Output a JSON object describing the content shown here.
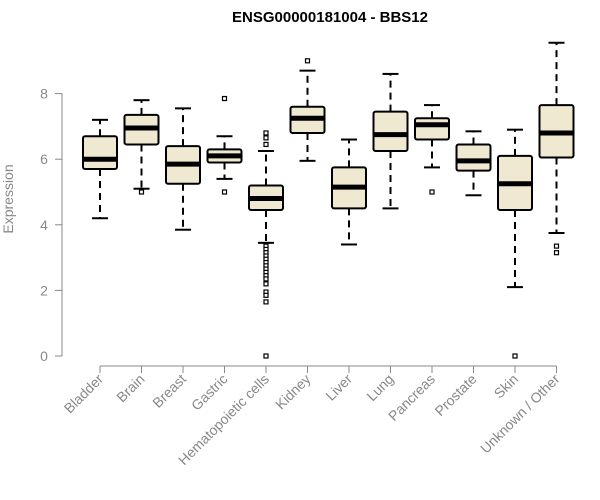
{
  "chart_data": {
    "type": "box",
    "title": "ENSG00000181004 - BBS12",
    "xlabel": "",
    "ylabel": "Expression",
    "ylim": [
      0,
      9.6
    ],
    "yticks": [
      0,
      2,
      4,
      6,
      8
    ],
    "grid": false,
    "box_fill": "#efe9d2",
    "categories": [
      "Bladder",
      "Brain",
      "Breast",
      "Gastric",
      "Hematopoietic cells",
      "Kidney",
      "Liver",
      "Lung",
      "Pancreas",
      "Prostate",
      "Skin",
      "Unknown / Other"
    ],
    "boxes": [
      {
        "whisker_low": 4.2,
        "q1": 5.7,
        "median": 6.0,
        "q3": 6.7,
        "whisker_high": 7.2,
        "outliers": []
      },
      {
        "whisker_low": 5.1,
        "q1": 6.45,
        "median": 6.95,
        "q3": 7.35,
        "whisker_high": 7.8,
        "outliers": [
          5.0
        ]
      },
      {
        "whisker_low": 3.85,
        "q1": 5.25,
        "median": 5.85,
        "q3": 6.4,
        "whisker_high": 7.55,
        "outliers": []
      },
      {
        "whisker_low": 5.4,
        "q1": 5.9,
        "median": 6.1,
        "q3": 6.3,
        "whisker_high": 6.7,
        "outliers": [
          7.85,
          5.0
        ]
      },
      {
        "whisker_low": 3.45,
        "q1": 4.45,
        "median": 4.8,
        "q3": 5.2,
        "whisker_high": 6.25,
        "outliers": [
          6.8,
          6.65,
          6.45,
          3.35,
          3.25,
          3.15,
          3.05,
          2.95,
          2.85,
          2.75,
          2.65,
          2.55,
          2.45,
          2.35,
          2.2,
          1.95,
          1.85,
          1.65,
          0.0
        ]
      },
      {
        "whisker_low": 5.95,
        "q1": 6.8,
        "median": 7.25,
        "q3": 7.6,
        "whisker_high": 8.7,
        "outliers": [
          9.0
        ]
      },
      {
        "whisker_low": 3.4,
        "q1": 4.5,
        "median": 5.15,
        "q3": 5.75,
        "whisker_high": 6.6,
        "outliers": []
      },
      {
        "whisker_low": 4.5,
        "q1": 6.25,
        "median": 6.75,
        "q3": 7.45,
        "whisker_high": 8.6,
        "outliers": []
      },
      {
        "whisker_low": 5.75,
        "q1": 6.6,
        "median": 7.05,
        "q3": 7.25,
        "whisker_high": 7.65,
        "outliers": [
          5.0
        ]
      },
      {
        "whisker_low": 4.9,
        "q1": 5.65,
        "median": 5.95,
        "q3": 6.45,
        "whisker_high": 6.85,
        "outliers": []
      },
      {
        "whisker_low": 2.1,
        "q1": 4.45,
        "median": 5.25,
        "q3": 6.1,
        "whisker_high": 6.9,
        "outliers": [
          0.0
        ]
      },
      {
        "whisker_low": 3.75,
        "q1": 6.05,
        "median": 6.8,
        "q3": 7.65,
        "whisker_high": 9.55,
        "outliers": [
          3.35,
          3.15
        ]
      }
    ]
  }
}
